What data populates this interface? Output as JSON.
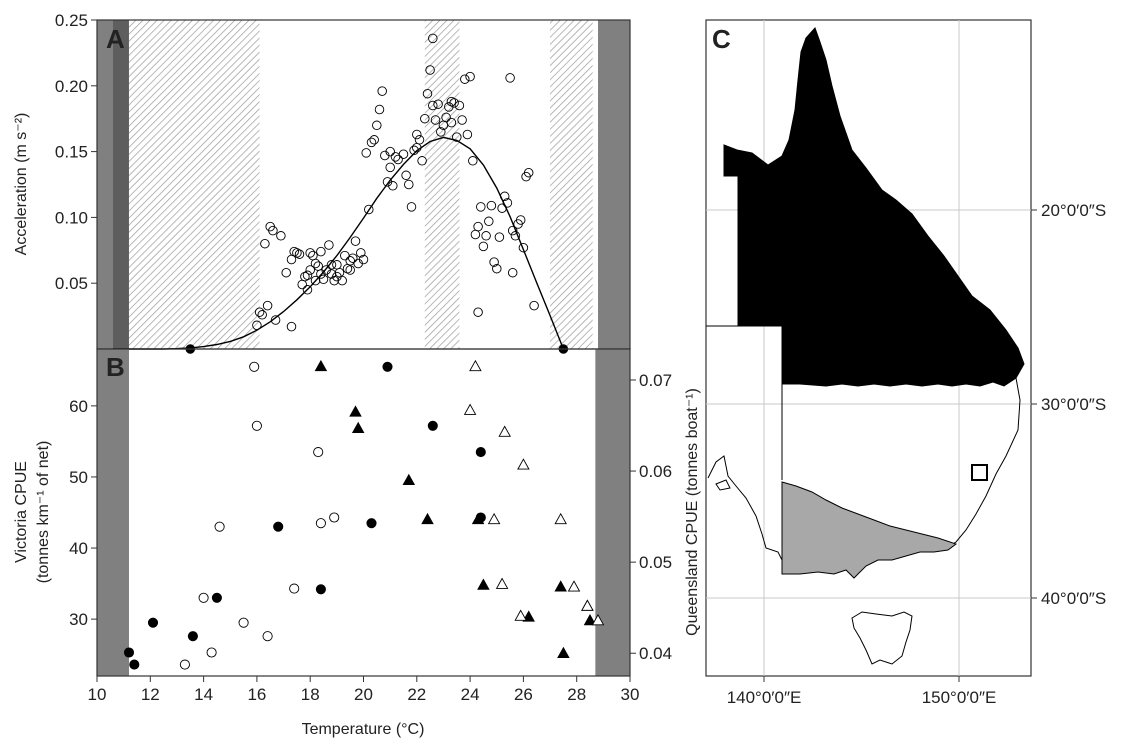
{
  "colors": {
    "frame": "#333333",
    "shade_dark": "#808080",
    "hatch_line": "#9a9a9a",
    "land_black": "#000000",
    "victoria_grey": "#a8a8a8",
    "grid": "#c8c8c8",
    "marker": "#000000"
  },
  "chart_data": [
    {
      "panel": "A",
      "type": "scatter",
      "panel_label": "A",
      "ylabel": "Acceleration (m s⁻²)",
      "xlim": [
        10,
        30
      ],
      "ylim": [
        0,
        0.25
      ],
      "y_ticks": [
        "0.05",
        "0.10",
        "0.15",
        "0.20",
        "0.25"
      ],
      "y_tick_values": [
        0.05,
        0.1,
        0.15,
        0.2,
        0.25
      ],
      "grey_bands": [
        [
          10,
          10.6
        ],
        [
          28.8,
          30
        ]
      ],
      "dark_bands": [
        [
          10.6,
          11.2
        ]
      ],
      "hatched_bands": [
        [
          11.2,
          16.1
        ],
        [
          22.3,
          23.6
        ],
        [
          27.0,
          28.6
        ]
      ],
      "series": [
        {
          "style": "open-circle",
          "x": [
            16.0,
            16.1,
            16.2,
            16.3,
            16.4,
            16.5,
            16.6,
            16.7,
            16.9,
            17.1,
            17.3,
            17.3,
            17.4,
            17.5,
            17.6,
            17.7,
            17.8,
            17.9,
            17.9,
            18.0,
            18.0,
            18.1,
            18.2,
            18.2,
            18.3,
            18.4,
            18.4,
            18.5,
            18.6,
            18.7,
            18.8,
            18.8,
            18.9,
            19.0,
            19.0,
            19.1,
            19.2,
            19.3,
            19.4,
            19.5,
            19.5,
            19.6,
            19.7,
            19.8,
            19.9,
            20.0,
            20.1,
            20.2,
            20.3,
            20.4,
            20.5,
            20.6,
            20.7,
            20.8,
            20.9,
            21.0,
            21.1,
            21.2,
            21.3,
            21.5,
            21.6,
            21.7,
            21.8,
            21.9,
            22.0,
            22.1,
            22.2,
            22.3,
            22.4,
            22.5,
            22.6,
            22.7,
            22.8,
            22.9,
            23.0,
            23.1,
            23.2,
            23.3,
            23.4,
            23.5,
            23.6,
            23.7,
            23.8,
            23.9,
            24.0,
            24.1,
            24.2,
            24.3,
            24.4,
            24.5,
            24.6,
            24.7,
            24.8,
            24.9,
            25.0,
            25.1,
            25.2,
            25.3,
            25.4,
            25.5,
            25.6,
            25.7,
            25.8,
            25.9,
            26.0,
            26.1,
            26.2,
            26.4,
            25.6,
            24.3,
            22.6,
            22.0,
            21.0,
            23.3
          ],
          "y": [
            0.018,
            0.028,
            0.026,
            0.08,
            0.033,
            0.093,
            0.09,
            0.022,
            0.086,
            0.058,
            0.068,
            0.017,
            0.074,
            0.073,
            0.072,
            0.049,
            0.055,
            0.056,
            0.045,
            0.06,
            0.073,
            0.071,
            0.065,
            0.052,
            0.063,
            0.057,
            0.074,
            0.053,
            0.06,
            0.079,
            0.064,
            0.057,
            0.052,
            0.064,
            0.055,
            0.058,
            0.052,
            0.071,
            0.061,
            0.06,
            0.067,
            0.069,
            0.082,
            0.065,
            0.073,
            0.068,
            0.149,
            0.106,
            0.157,
            0.159,
            0.17,
            0.182,
            0.196,
            0.147,
            0.127,
            0.138,
            0.124,
            0.146,
            0.144,
            0.148,
            0.132,
            0.125,
            0.108,
            0.151,
            0.163,
            0.159,
            0.143,
            0.175,
            0.194,
            0.212,
            0.185,
            0.174,
            0.186,
            0.165,
            0.17,
            0.176,
            0.184,
            0.188,
            0.187,
            0.161,
            0.185,
            0.174,
            0.205,
            0.163,
            0.207,
            0.143,
            0.087,
            0.093,
            0.108,
            0.078,
            0.086,
            0.097,
            0.109,
            0.066,
            0.061,
            0.085,
            0.107,
            0.116,
            0.111,
            0.206,
            0.09,
            0.086,
            0.095,
            0.098,
            0.077,
            0.131,
            0.134,
            0.033,
            0.058,
            0.028,
            0.236,
            0.153,
            0.15,
            0.172
          ],
          "note": "approximate"
        },
        {
          "style": "filled-circle",
          "x": [
            13.5,
            27.5
          ],
          "y": [
            0.0,
            0.0
          ]
        }
      ],
      "fit_curve": {
        "x": [
          10.6,
          11,
          11.5,
          12,
          12.5,
          13,
          13.5,
          14,
          14.5,
          15,
          15.5,
          16,
          16.5,
          17,
          17.5,
          18,
          18.5,
          19,
          19.5,
          20,
          20.5,
          21,
          21.5,
          22,
          22.5,
          23,
          23.5,
          24,
          24.5,
          25,
          25.5,
          26,
          26.5,
          27,
          27.5
        ],
        "y": [
          0,
          0,
          0,
          0,
          0,
          0.0003,
          0.0008,
          0.0018,
          0.0034,
          0.0058,
          0.0093,
          0.0143,
          0.0207,
          0.0284,
          0.0374,
          0.0473,
          0.0585,
          0.071,
          0.0848,
          0.0995,
          0.1145,
          0.1283,
          0.1403,
          0.1507,
          0.1577,
          0.1608,
          0.1585,
          0.1521,
          0.1398,
          0.1223,
          0.1005,
          0.0755,
          0.0503,
          0.0255,
          0.0
        ]
      }
    },
    {
      "panel": "B",
      "type": "scatter",
      "panel_label": "B",
      "xlabel": "Temperature (°C)",
      "ylabel_line1": "Victoria CPUE",
      "ylabel_line2": "(tonnes km⁻¹ of net)",
      "ylabel_right": "Queensland CPUE (tonnes boat⁻¹)",
      "xlim": [
        10,
        30
      ],
      "ylim_left": [
        22,
        68
      ],
      "ylim_right": [
        0.0375,
        0.0734
      ],
      "x_ticks": [
        "10",
        "12",
        "14",
        "16",
        "18",
        "20",
        "22",
        "24",
        "26",
        "28",
        "30"
      ],
      "x_tick_values": [
        10,
        12,
        14,
        16,
        18,
        20,
        22,
        24,
        26,
        28,
        30
      ],
      "y_ticks_left": [
        "30",
        "40",
        "50",
        "60"
      ],
      "y_tick_values_left": [
        30,
        40,
        50,
        60
      ],
      "y_ticks_right": [
        "0.04",
        "0.05",
        "0.06",
        "0.07"
      ],
      "y_tick_values_right": [
        0.04,
        0.05,
        0.06,
        0.07
      ],
      "grey_bands": [
        [
          10,
          11.2
        ],
        [
          28.7,
          30
        ]
      ],
      "series": [
        {
          "style": "filled-circle",
          "axis": "left",
          "x": [
            11.2,
            11.4,
            12.1,
            13.6,
            14.5,
            16.8,
            18.4,
            20.3,
            20.9,
            22.6,
            24.4,
            24.4
          ],
          "y": [
            25.3,
            23.6,
            29.5,
            27.6,
            33.0,
            43.0,
            34.2,
            43.5,
            65.5,
            57.2,
            53.5,
            44.3
          ]
        },
        {
          "style": "open-circle",
          "axis": "left",
          "x": [
            13.3,
            14.0,
            14.3,
            14.6,
            15.5,
            15.9,
            16.0,
            16.4,
            17.4,
            18.3,
            18.4,
            18.9
          ],
          "y": [
            23.6,
            33.0,
            25.3,
            43.0,
            29.5,
            65.5,
            57.2,
            27.6,
            34.3,
            53.5,
            43.5,
            44.3
          ]
        },
        {
          "style": "filled-triangle",
          "axis": "right",
          "x": [
            18.4,
            19.7,
            19.8,
            21.7,
            22.4,
            24.3,
            24.5,
            26.2,
            27.4,
            27.5,
            28.4,
            28.5
          ],
          "y": [
            0.0715,
            0.0665,
            0.0647,
            0.059,
            0.0547,
            0.0547,
            0.0475,
            0.044,
            0.0473,
            0.04,
            0.0452,
            0.0436
          ]
        },
        {
          "style": "open-triangle",
          "axis": "right",
          "x": [
            24.0,
            24.2,
            24.9,
            25.2,
            25.3,
            25.9,
            26.0,
            27.4,
            27.9,
            28.4,
            28.8
          ],
          "y": [
            0.0667,
            0.0715,
            0.0547,
            0.0476,
            0.0643,
            0.0441,
            0.0607,
            0.0547,
            0.0473,
            0.0452,
            0.0436
          ]
        }
      ]
    },
    {
      "panel": "C",
      "type": "map",
      "panel_label": "C",
      "x_ticks": [
        "140°0′0″E",
        "150°0′0″E"
      ],
      "x_tick_values": [
        140,
        150
      ],
      "y_ticks": [
        "20°0′0″S",
        "30°0′0″S",
        "40°0′0″S"
      ],
      "y_tick_values": [
        -20,
        -30,
        -40
      ],
      "regions": [
        "Queensland (black)",
        "Victoria (grey)",
        "New South Wales",
        "Tasmania",
        "South Australia"
      ],
      "study_site_marker": "square"
    }
  ]
}
